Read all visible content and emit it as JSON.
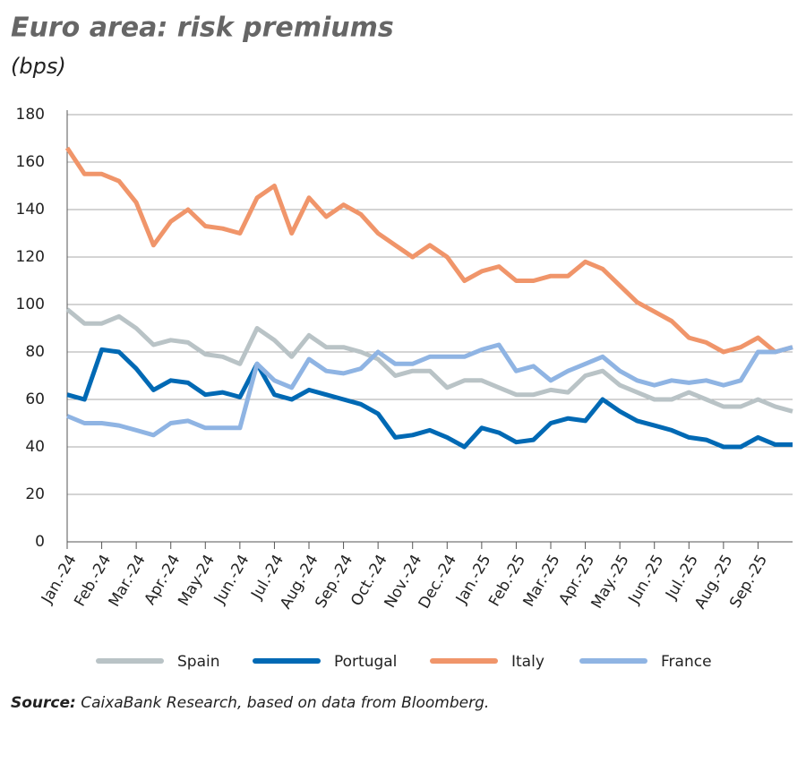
{
  "chart_data": {
    "type": "line",
    "title": "Euro area: risk premiums",
    "subtitle": "(bps)",
    "source": {
      "label": "Source:",
      "text": "CaixaBank Research, based on data from Bloomberg."
    },
    "categories": [
      "Jan.-24",
      null,
      "Feb.-24",
      null,
      "Mar.-24",
      null,
      "Apr.-24",
      null,
      "May-24",
      null,
      "Jun.-24",
      null,
      "Jul.-24",
      null,
      "Aug.-24",
      null,
      "Sep.-24",
      null,
      "Oct.-24",
      null,
      "Nov.-24",
      null,
      "Dec.-24",
      null,
      "Jan.-25",
      null,
      "Feb.-25",
      null,
      "Mar.-25",
      null,
      "Apr.-25",
      null,
      "May.-25",
      null,
      "Jun.-25",
      null,
      "Jul.-25",
      null,
      "Aug.-25",
      null,
      "Sep.-25",
      null,
      null
    ],
    "series": [
      {
        "name": "Spain",
        "color": "#b9c3c6",
        "values": [
          98,
          92,
          92,
          95,
          90,
          83,
          85,
          84,
          79,
          78,
          75,
          90,
          85,
          78,
          87,
          82,
          82,
          80,
          77,
          70,
          72,
          72,
          65,
          68,
          68,
          65,
          62,
          62,
          64,
          63,
          70,
          72,
          66,
          63,
          60,
          60,
          63,
          60,
          57,
          57,
          60,
          57,
          55
        ]
      },
      {
        "name": "Portugal",
        "color": "#0069b4",
        "values": [
          62,
          60,
          81,
          80,
          73,
          64,
          68,
          67,
          62,
          63,
          61,
          75,
          62,
          60,
          64,
          62,
          60,
          58,
          54,
          44,
          45,
          47,
          44,
          40,
          48,
          46,
          42,
          43,
          50,
          52,
          51,
          60,
          55,
          51,
          49,
          47,
          44,
          43,
          40,
          40,
          44,
          41,
          41
        ]
      },
      {
        "name": "Italy",
        "color": "#f0956a",
        "values": [
          166,
          155,
          155,
          152,
          143,
          125,
          135,
          140,
          133,
          132,
          130,
          145,
          150,
          130,
          145,
          137,
          142,
          138,
          130,
          125,
          120,
          125,
          120,
          110,
          114,
          116,
          110,
          110,
          112,
          112,
          118,
          115,
          108,
          101,
          97,
          93,
          86,
          84,
          80,
          82,
          86,
          80,
          82
        ]
      },
      {
        "name": "France",
        "color": "#8fb4e3",
        "values": [
          53,
          50,
          50,
          49,
          47,
          45,
          50,
          51,
          48,
          48,
          48,
          75,
          68,
          65,
          77,
          72,
          71,
          73,
          80,
          75,
          75,
          78,
          78,
          78,
          81,
          83,
          72,
          74,
          68,
          72,
          75,
          78,
          72,
          68,
          66,
          68,
          67,
          68,
          66,
          68,
          80,
          80,
          82
        ]
      }
    ],
    "ylim": [
      0,
      180
    ],
    "yticks": [
      0,
      20,
      40,
      60,
      80,
      100,
      120,
      140,
      160,
      180
    ],
    "grid": true
  }
}
